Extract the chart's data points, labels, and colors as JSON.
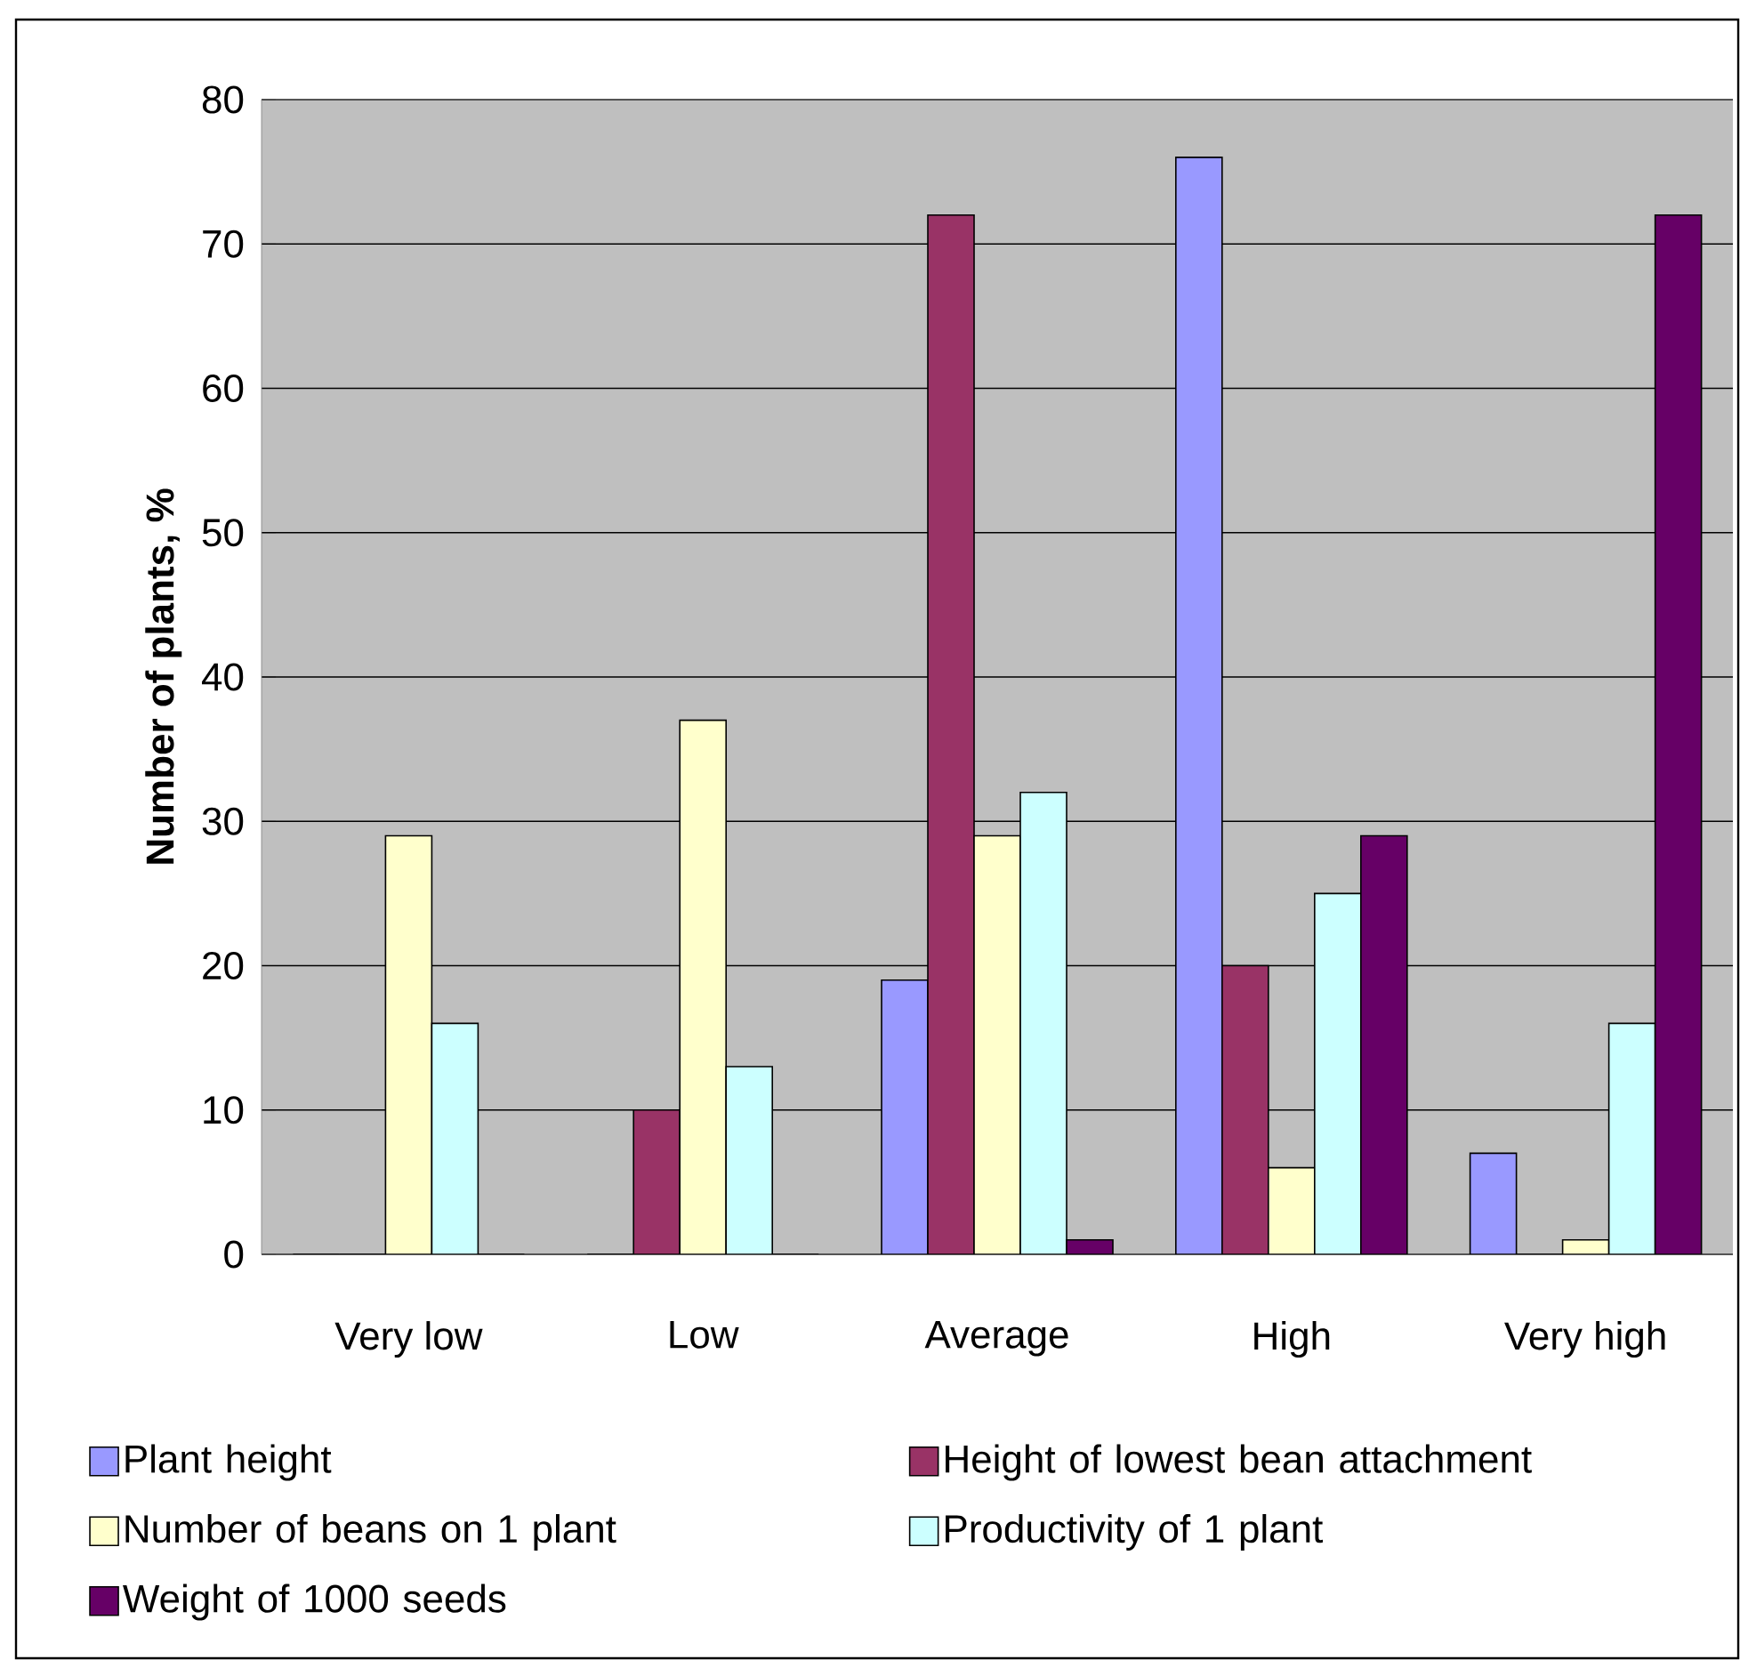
{
  "chart_data": {
    "type": "bar",
    "ylabel": "Number of plants, %",
    "categories": [
      "Very low",
      "Low",
      "Average",
      "High",
      "Very high"
    ],
    "series": [
      {
        "name": "Plant height",
        "color": "#9999ff",
        "values": [
          0,
          0,
          19,
          76,
          7
        ]
      },
      {
        "name": "Height of lowest bean attachment",
        "color": "#993366",
        "values": [
          0,
          10,
          72,
          20,
          0
        ]
      },
      {
        "name": "Number of beans on 1 plant",
        "color": "#ffffcc",
        "values": [
          29,
          37,
          29,
          6,
          1
        ]
      },
      {
        "name": "Productivity of 1 plant",
        "color": "#ccffff",
        "values": [
          16,
          13,
          32,
          25,
          16
        ]
      },
      {
        "name": "Weight of 1000 seeds",
        "color": "#660066",
        "values": [
          0,
          0,
          1,
          29,
          72
        ]
      }
    ],
    "ylim": [
      0,
      80
    ],
    "yticks": [
      0,
      10,
      20,
      30,
      40,
      50,
      60,
      70,
      80
    ],
    "grid": "y",
    "legend": "bottom"
  }
}
